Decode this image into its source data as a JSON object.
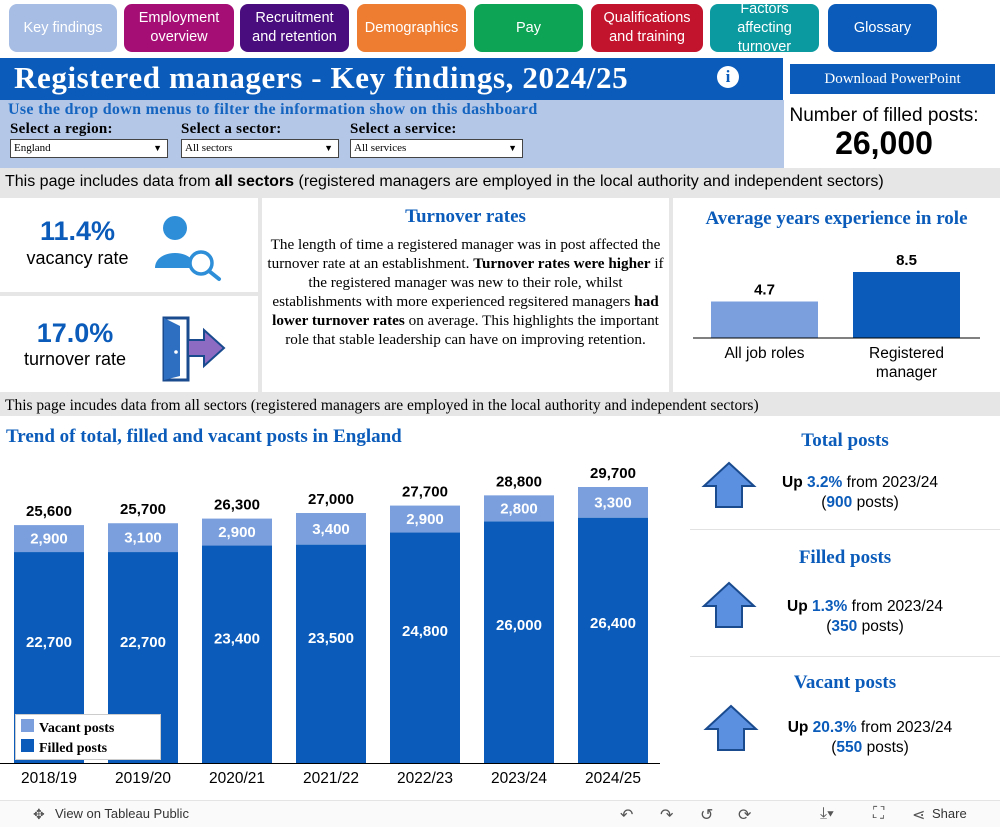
{
  "nav": {
    "tabs": [
      {
        "label": "Key findings",
        "color": "#a7bde3"
      },
      {
        "label": "Employment overview",
        "color": "#a50f75"
      },
      {
        "label": "Recruitment and retention",
        "color": "#4a0d7d"
      },
      {
        "label": "Demographics",
        "color": "#ee7d31"
      },
      {
        "label": "Pay",
        "color": "#0ea455"
      },
      {
        "label": "Qualifications and training",
        "color": "#c3142d"
      },
      {
        "label": "Factors affecting turnover",
        "color": "#0b9aa0"
      },
      {
        "label": "Glossary",
        "color": "#0b5cba"
      }
    ]
  },
  "header": {
    "title": "Registered managers - Key findings, 2024/25",
    "info_icon": "i",
    "download_label": "Download PowerPoint"
  },
  "filters": {
    "heading": "Use the drop down menus to filter the information show on this dashboard",
    "region_label": "Select a region:",
    "region_value": "England",
    "sector_label": "Select a sector:",
    "sector_value": "All sectors",
    "service_label": "Select a service:",
    "service_value": "All services"
  },
  "filled_posts_box": {
    "label": "Number of filled posts:",
    "value": "26,000"
  },
  "banner_top": {
    "prefix": "This page includes data from ",
    "bold": "all sectors",
    "suffix": " (registered managers are employed in the local authority and independent sectors)"
  },
  "kpis": {
    "vacancy": {
      "value": "11.4%",
      "label": "vacancy rate",
      "icon": "person-search-icon"
    },
    "turnover": {
      "value": "17.0%",
      "label": "turnover rate",
      "icon": "door-exit-icon"
    }
  },
  "turnover_panel": {
    "title": "Turnover rates",
    "p1": "The length of time a registered manager was in post affected the turnover rate at an establishment. ",
    "b1": "Turnover rates were higher",
    "p2": " if the registered manager was new to their role, whilst establishments with more experienced regsitered managers ",
    "b2": "had lower turnover rates",
    "p3": " on average. This highlights the important role that stable leadership can have on improving retention."
  },
  "experience_chart": {
    "title": "Average years experience in role",
    "categories": [
      "All job roles",
      "Registered manager"
    ],
    "values": [
      4.7,
      8.5
    ],
    "value_labels": [
      "4.7",
      "8.5"
    ],
    "colors": [
      "#7a9fdc",
      "#0b5cba"
    ]
  },
  "banner_mid": "This page incudes data from all sectors (registered managers are employed in the local authority and independent sectors)",
  "chart_data": {
    "type": "bar",
    "title": "Trend of total, filled and vacant posts in England",
    "categories": [
      "2018/19",
      "2019/20",
      "2020/21",
      "2021/22",
      "2022/23",
      "2023/24",
      "2024/25"
    ],
    "series": [
      {
        "name": "Filled posts",
        "values": [
          22700,
          22700,
          23400,
          23500,
          24800,
          26000,
          26400
        ],
        "labels": [
          "22,700",
          "22,700",
          "23,400",
          "23,500",
          "24,800",
          "26,000",
          "26,400"
        ],
        "color": "#0b5cba"
      },
      {
        "name": "Vacant posts",
        "values": [
          2900,
          3100,
          2900,
          3400,
          2900,
          2800,
          3300
        ],
        "labels": [
          "2,900",
          "3,100",
          "2,900",
          "3,400",
          "2,900",
          "2,800",
          "3,300"
        ],
        "color": "#7a9fdc"
      }
    ],
    "totals": [
      25600,
      25700,
      26300,
      27000,
      27700,
      28800,
      29700
    ],
    "total_labels": [
      "25,600",
      "25,700",
      "26,300",
      "27,000",
      "27,700",
      "28,800",
      "29,700"
    ],
    "stacked": true,
    "legend_position": "bottom-left",
    "ylim": [
      0,
      29700
    ]
  },
  "changes": [
    {
      "title": "Total posts",
      "prefix": "Up ",
      "pct": "3.2%",
      "mid": " from 2023/24",
      "open": "(",
      "count": "900",
      "close": " posts)"
    },
    {
      "title": "Filled posts",
      "prefix": "Up ",
      "pct": "1.3%",
      "mid": " from 2023/24",
      "open": "(",
      "count": "350",
      "close": " posts)"
    },
    {
      "title": "Vacant posts",
      "prefix": "Up ",
      "pct": "20.3%",
      "mid": " from 2023/24",
      "open": "(",
      "count": "550",
      "close": " posts)"
    }
  ],
  "toolbar": {
    "view_label": "View on Tableau Public",
    "share_label": "Share"
  }
}
